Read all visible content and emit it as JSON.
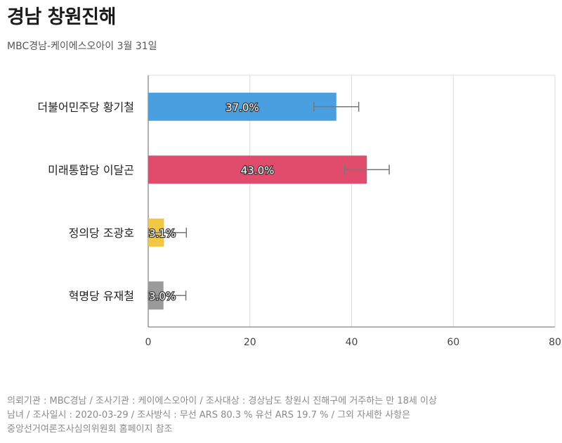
{
  "header": {
    "title": "경남 창원진해",
    "subtitle": "MBC경남-케이에스오아이 3월 31일"
  },
  "footer": {
    "line1": "의뢰기관 : MBC경남 / 조사기관 : 케이에스오아이 / 조사대상 : 경상남도 창원시 진해구에 거주하는 만 18세 이상",
    "line2": "남녀 / 조사일시 : 2020-03-29 / 조사방식 : 무선 ARS 80.3 % 유선 ARS 19.7 % / 그외 자세한 사항은",
    "line3": "중앙선거여론조사심의위원회 홈페이지 참조"
  },
  "chart_data": {
    "type": "bar",
    "orientation": "horizontal",
    "categories": [
      "더불어민주당 황기철",
      "미래통합당 이달곤",
      "정의당 조광호",
      "혁명당 유재철"
    ],
    "values": [
      37.0,
      43.0,
      3.1,
      3.0
    ],
    "value_labels": [
      "37.0%",
      "43.0%",
      "3.1%",
      "3.0%"
    ],
    "error_margin": [
      4.4,
      4.4,
      4.4,
      4.4
    ],
    "colors": [
      "#4a9fe0",
      "#e14b6c",
      "#f2c744",
      "#9a9a9a"
    ],
    "xticks": [
      "0",
      "20",
      "40",
      "60",
      "80"
    ],
    "xlim": [
      0,
      80
    ],
    "grid": true
  }
}
